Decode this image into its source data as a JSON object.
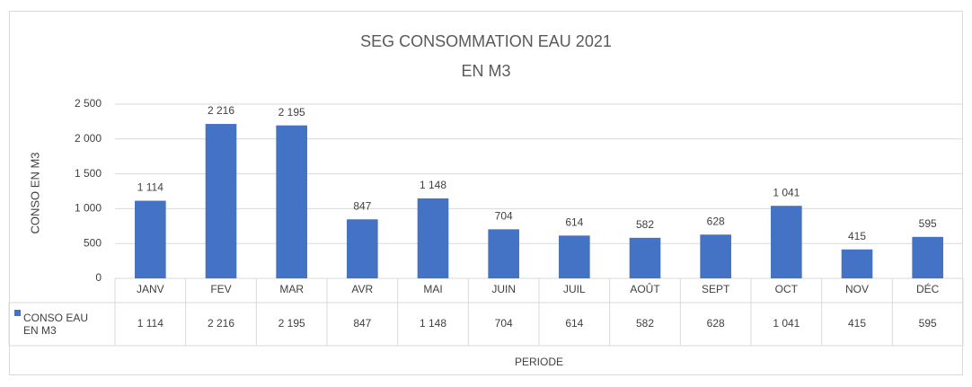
{
  "chart_data": {
    "type": "bar",
    "title": "SEG CONSOMMATION EAU 2021",
    "subtitle": "EN M3",
    "ylabel": "CONSO EN M3",
    "xlabel": "PERIODE",
    "categories": [
      "JANV",
      "FEV",
      "MAR",
      "AVR",
      "MAI",
      "JUIN",
      "JUIL",
      "AOÛT",
      "SEPT",
      "OCT",
      "NOV",
      "DÉC"
    ],
    "series": [
      {
        "name": "CONSO EAU EN M3",
        "color": "#4472c4",
        "values": [
          1114,
          2216,
          2195,
          847,
          1148,
          704,
          614,
          582,
          628,
          1041,
          415,
          595
        ],
        "value_labels": [
          "1 114",
          "2 216",
          "2 195",
          "847",
          "1 148",
          "704",
          "614",
          "582",
          "628",
          "1 041",
          "415",
          "595"
        ]
      }
    ],
    "ylim": [
      0,
      2500
    ],
    "yticks": [
      0,
      500,
      {
        "value": 1000,
        "label": "1 000"
      },
      {
        "value": 1500,
        "label": "1 500"
      },
      {
        "value": 2000,
        "label": "2 000"
      },
      {
        "value": 2500,
        "label": "2 500"
      }
    ],
    "grid": true,
    "data_table": true
  }
}
